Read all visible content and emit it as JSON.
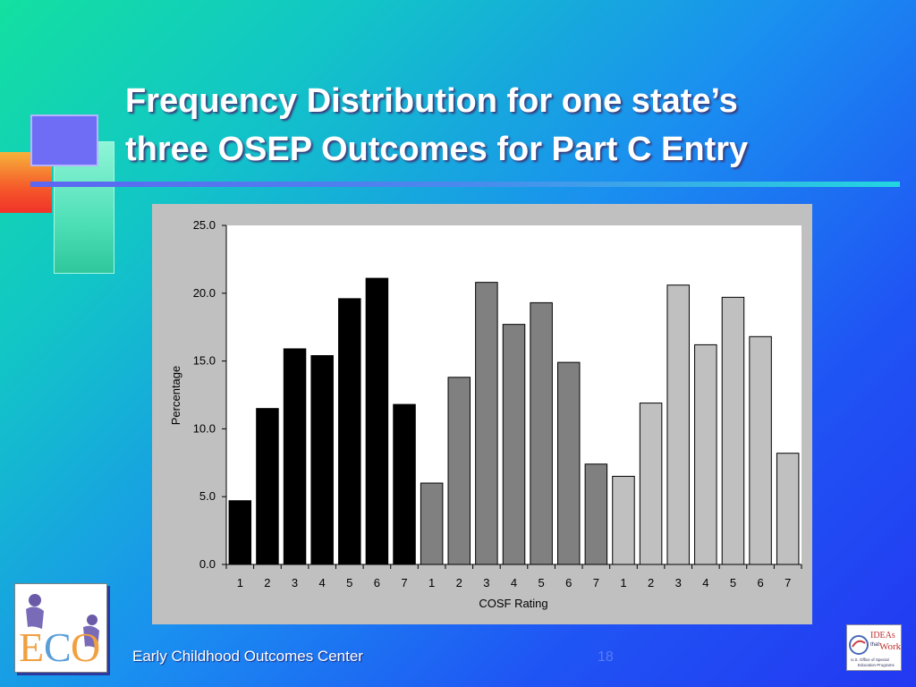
{
  "slide": {
    "title_line1": "Frequency Distribution for one state’s",
    "title_line2": "three OSEP Outcomes for Part C Entry",
    "footer_text": "Early Childhood Outcomes Center",
    "page_number": "18",
    "logo_left_text": "ECO",
    "logo_right_text": "IDEAs that Work U.S. Office of Special Education Programs"
  },
  "colors": {
    "series1": "#000000",
    "series2": "#808080",
    "series3": "#c0c0c0",
    "plot_bg": "#ffffff",
    "panel_bg": "#c0c0c0"
  },
  "chart_data": {
    "type": "bar",
    "ylabel": "Percentage",
    "xlabel": "COSF Rating",
    "ylim": [
      0,
      25
    ],
    "yticks": [
      "0.0",
      "5.0",
      "10.0",
      "15.0",
      "20.0",
      "25.0"
    ],
    "grid": false,
    "series": [
      {
        "categories": [
          "1",
          "2",
          "3",
          "4",
          "5",
          "6",
          "7"
        ],
        "values": [
          4.7,
          11.5,
          15.9,
          15.4,
          19.6,
          21.1,
          11.8
        ]
      },
      {
        "categories": [
          "1",
          "2",
          "3",
          "4",
          "5",
          "6",
          "7"
        ],
        "values": [
          6.0,
          13.8,
          20.8,
          17.7,
          19.3,
          14.9,
          7.4
        ]
      },
      {
        "categories": [
          "1",
          "2",
          "3",
          "4",
          "5",
          "6",
          "7"
        ],
        "values": [
          6.5,
          11.9,
          20.6,
          16.2,
          19.7,
          16.8,
          8.2
        ]
      }
    ]
  }
}
